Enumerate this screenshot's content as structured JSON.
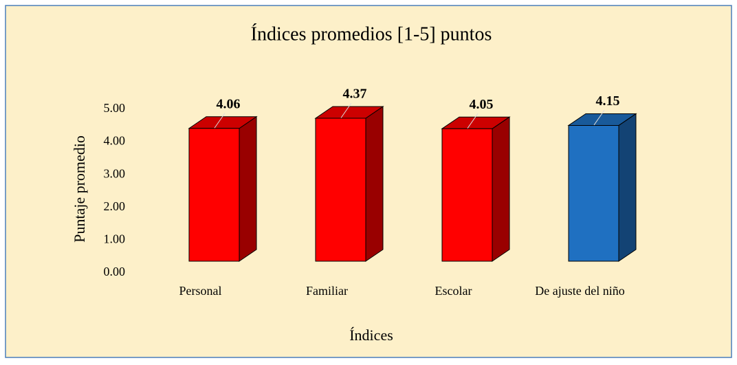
{
  "chart_data": {
    "type": "bar3d",
    "title": "Índices promedios [1-5] puntos",
    "x_label": "Índices",
    "y_label": "Puntaje promedio",
    "categories": [
      "Personal",
      "Familiar",
      "Escolar",
      "De ajuste del niño"
    ],
    "values": [
      4.06,
      4.37,
      4.05,
      4.15
    ],
    "colors": [
      "#ff0000",
      "#ff0000",
      "#ff0000",
      "#1f70c1"
    ],
    "ylim": [
      0,
      5
    ],
    "yticks": [
      {
        "value": 0,
        "label": "0.00"
      },
      {
        "value": 1,
        "label": "1.00"
      },
      {
        "value": 2,
        "label": "2.00"
      },
      {
        "value": 3,
        "label": "3.00"
      },
      {
        "value": 4,
        "label": "4.00"
      },
      {
        "value": 5,
        "label": "5.00"
      }
    ],
    "grid": false
  }
}
